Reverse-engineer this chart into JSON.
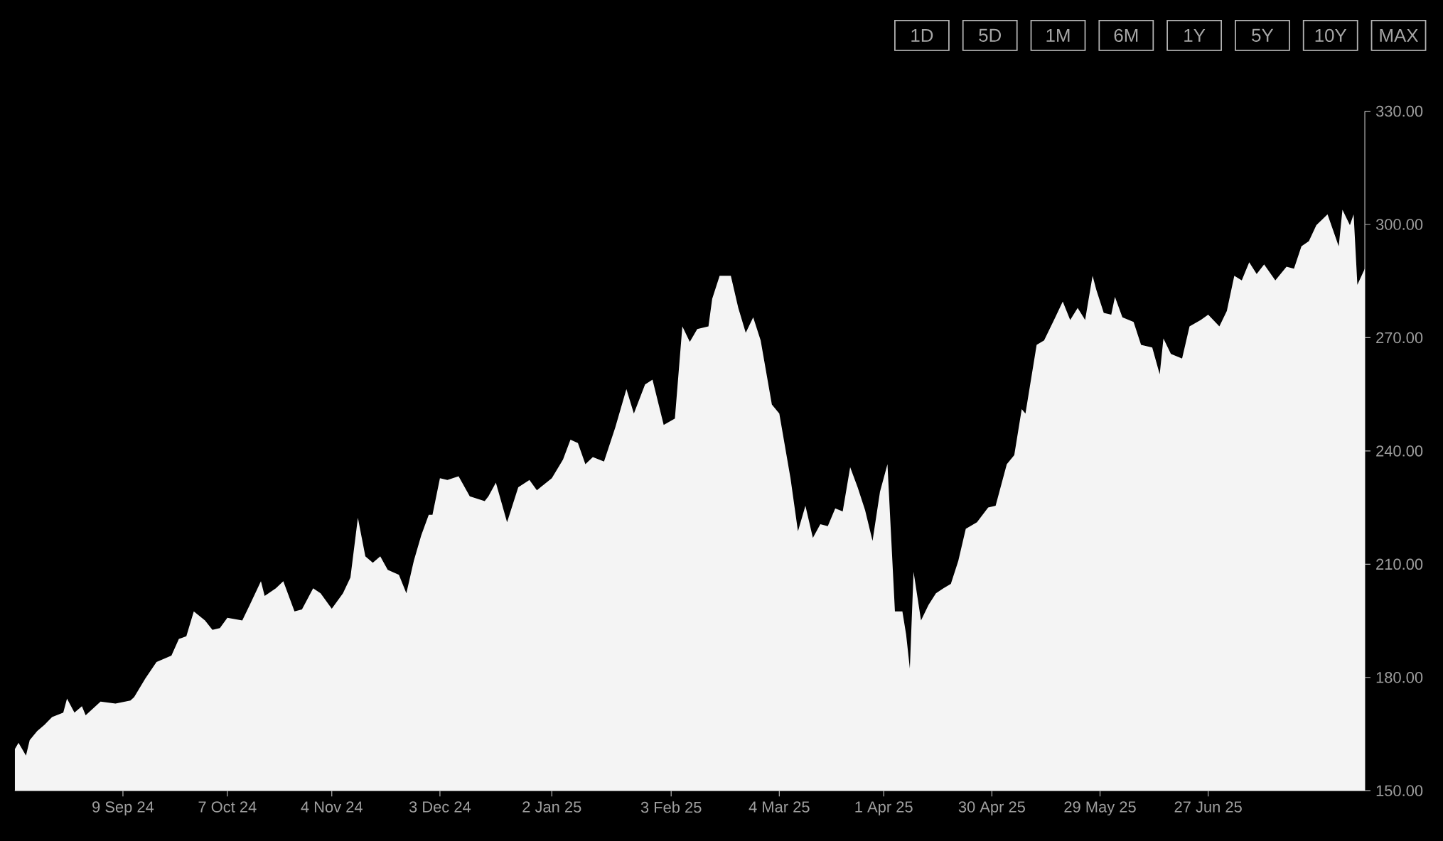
{
  "chart_data": {
    "type": "area",
    "annotations": [
      "1D",
      "5D",
      "1M",
      "6M",
      "1Y",
      "5Y",
      "10Y",
      "MAX"
    ],
    "x": [
      "2024-08-11",
      "2024-08-12",
      "2024-08-14",
      "2024-08-15",
      "2024-08-17",
      "2024-08-19",
      "2024-08-21",
      "2024-08-24",
      "2024-08-25",
      "2024-08-27",
      "2024-08-29",
      "2024-08-30",
      "2024-09-03",
      "2024-09-07",
      "2024-09-11",
      "2024-09-12",
      "2024-09-15",
      "2024-09-18",
      "2024-09-22",
      "2024-09-24",
      "2024-09-26",
      "2024-09-28",
      "2024-10-01",
      "2024-10-03",
      "2024-10-05",
      "2024-10-07",
      "2024-10-11",
      "2024-10-13",
      "2024-10-16",
      "2024-10-17",
      "2024-10-20",
      "2024-10-22",
      "2024-10-25",
      "2024-10-27",
      "2024-10-30",
      "2024-11-01",
      "2024-11-04",
      "2024-11-07",
      "2024-11-09",
      "2024-11-11",
      "2024-11-13",
      "2024-11-15",
      "2024-11-17",
      "2024-11-19",
      "2024-11-22",
      "2024-11-24",
      "2024-11-26",
      "2024-11-28",
      "2024-11-30",
      "2024-12-01",
      "2024-12-03",
      "2024-12-05",
      "2024-12-08",
      "2024-12-11",
      "2024-12-15",
      "2024-12-16",
      "2024-12-18",
      "2024-12-21",
      "2024-12-24",
      "2024-12-27",
      "2024-12-29",
      "2025-01-02",
      "2025-01-05",
      "2025-01-07",
      "2025-01-09",
      "2025-01-11",
      "2025-01-13",
      "2025-01-16",
      "2025-01-19",
      "2025-01-22",
      "2025-01-24",
      "2025-01-27",
      "2025-01-29",
      "2025-02-01",
      "2025-02-04",
      "2025-02-06",
      "2025-02-08",
      "2025-02-10",
      "2025-02-13",
      "2025-02-14",
      "2025-02-16",
      "2025-02-19",
      "2025-02-21",
      "2025-02-23",
      "2025-02-25",
      "2025-02-27",
      "2025-03-02",
      "2025-03-04",
      "2025-03-07",
      "2025-03-09",
      "2025-03-11",
      "2025-03-13",
      "2025-03-15",
      "2025-03-17",
      "2025-03-19",
      "2025-03-21",
      "2025-03-23",
      "2025-03-25",
      "2025-03-27",
      "2025-03-29",
      "2025-03-31",
      "2025-04-02",
      "2025-04-04",
      "2025-04-06",
      "2025-04-07",
      "2025-04-08",
      "2025-04-09",
      "2025-04-11",
      "2025-04-13",
      "2025-04-15",
      "2025-04-17",
      "2025-04-19",
      "2025-04-21",
      "2025-04-23",
      "2025-04-26",
      "2025-04-29",
      "2025-05-01",
      "2025-05-04",
      "2025-05-06",
      "2025-05-08",
      "2025-05-09",
      "2025-05-12",
      "2025-05-14",
      "2025-05-17",
      "2025-05-19",
      "2025-05-21",
      "2025-05-23",
      "2025-05-25",
      "2025-05-27",
      "2025-05-28",
      "2025-05-30",
      "2025-06-01",
      "2025-06-02",
      "2025-06-04",
      "2025-06-07",
      "2025-06-09",
      "2025-06-12",
      "2025-06-14",
      "2025-06-15",
      "2025-06-17",
      "2025-06-20",
      "2025-06-22",
      "2025-06-25",
      "2025-06-27",
      "2025-06-30",
      "2025-07-02",
      "2025-07-04",
      "2025-07-06",
      "2025-07-08",
      "2025-07-10",
      "2025-07-12",
      "2025-07-15",
      "2025-07-18",
      "2025-07-20",
      "2025-07-22",
      "2025-07-24",
      "2025-07-26",
      "2025-07-29",
      "2025-08-01",
      "2025-08-02",
      "2025-08-04",
      "2025-08-05",
      "2025-08-06",
      "2025-08-08"
    ],
    "series": [
      {
        "color": "#f4f4f4",
        "values": [
          161,
          162.7,
          159.3,
          163.4,
          165.8,
          167.5,
          169.5,
          170.7,
          174.4,
          170.7,
          172.4,
          170,
          173.6,
          173.1,
          173.9,
          174.8,
          179.7,
          184.1,
          185.8,
          190.2,
          190.9,
          197.5,
          195.1,
          192.6,
          193.1,
          195.8,
          195.1,
          199.2,
          205.5,
          201.6,
          203.6,
          205.5,
          197.5,
          198,
          203.6,
          202.3,
          198.2,
          202.3,
          206.5,
          222.3,
          212.1,
          210.4,
          212.1,
          208.5,
          207.2,
          202.3,
          210.9,
          217.7,
          223.1,
          223.1,
          232.8,
          232.3,
          233.3,
          228,
          226.7,
          228,
          231.6,
          221.1,
          230.4,
          232.3,
          229.6,
          232.8,
          237.7,
          243,
          242.1,
          236.5,
          238.4,
          237.2,
          246.2,
          256.4,
          249.9,
          257.6,
          258.9,
          246.9,
          248.6,
          273,
          268.9,
          272.3,
          273,
          280.3,
          286.4,
          286.4,
          277.9,
          271.3,
          275.4,
          269.3,
          252.3,
          249.9,
          232.8,
          218.7,
          225.5,
          217,
          220.6,
          220.1,
          224.8,
          224,
          235.7,
          230.4,
          224.3,
          216.2,
          229.2,
          236.5,
          197.5,
          197.5,
          191.4,
          182.4,
          208,
          195.1,
          199.2,
          202.3,
          203.6,
          204.8,
          210.9,
          219.4,
          221.1,
          225,
          225.5,
          236.5,
          238.9,
          251.1,
          249.9,
          268.1,
          269.3,
          275.4,
          279.6,
          274.7,
          277.9,
          274.7,
          286.4,
          282.7,
          276.6,
          276.1,
          280.8,
          275.4,
          274.2,
          268.1,
          267.4,
          260.3,
          269.8,
          265.7,
          264.5,
          273,
          274.7,
          276.1,
          273,
          277.1,
          286.4,
          285.2,
          290,
          286.9,
          289.4,
          285.2,
          288.8,
          288.3,
          294.2,
          295.6,
          299.8,
          302.7,
          294.2,
          303.9,
          299.8,
          302.7,
          284,
          288.3
        ]
      }
    ],
    "xlim": [
      "2024-08-11",
      "2025-08-08"
    ],
    "xticks": [
      {
        "value": "2024-09-09",
        "label": "9 Sep 24"
      },
      {
        "value": "2024-10-07",
        "label": "7 Oct 24"
      },
      {
        "value": "2024-11-04",
        "label": "4 Nov 24"
      },
      {
        "value": "2024-12-03",
        "label": "3 Dec 24"
      },
      {
        "value": "2025-01-02",
        "label": "2 Jan 25"
      },
      {
        "value": "2025-02-03",
        "label": "3 Feb 25"
      },
      {
        "value": "2025-03-04",
        "label": "4 Mar 25"
      },
      {
        "value": "2025-04-01",
        "label": "1 Apr 25"
      },
      {
        "value": "2025-04-30",
        "label": "30 Apr 25"
      },
      {
        "value": "2025-05-29",
        "label": "29 May 25"
      },
      {
        "value": "2025-06-27",
        "label": "27 Jun 25"
      }
    ],
    "ylim": [
      150,
      330
    ],
    "yticks": [
      {
        "value": 150,
        "label": "150.00"
      },
      {
        "value": 180,
        "label": "180.00"
      },
      {
        "value": 210,
        "label": "210.00"
      },
      {
        "value": 240,
        "label": "240.00"
      },
      {
        "value": 270,
        "label": "270.00"
      },
      {
        "value": 300,
        "label": "300.00"
      },
      {
        "value": 330,
        "label": "330.00"
      }
    ]
  }
}
